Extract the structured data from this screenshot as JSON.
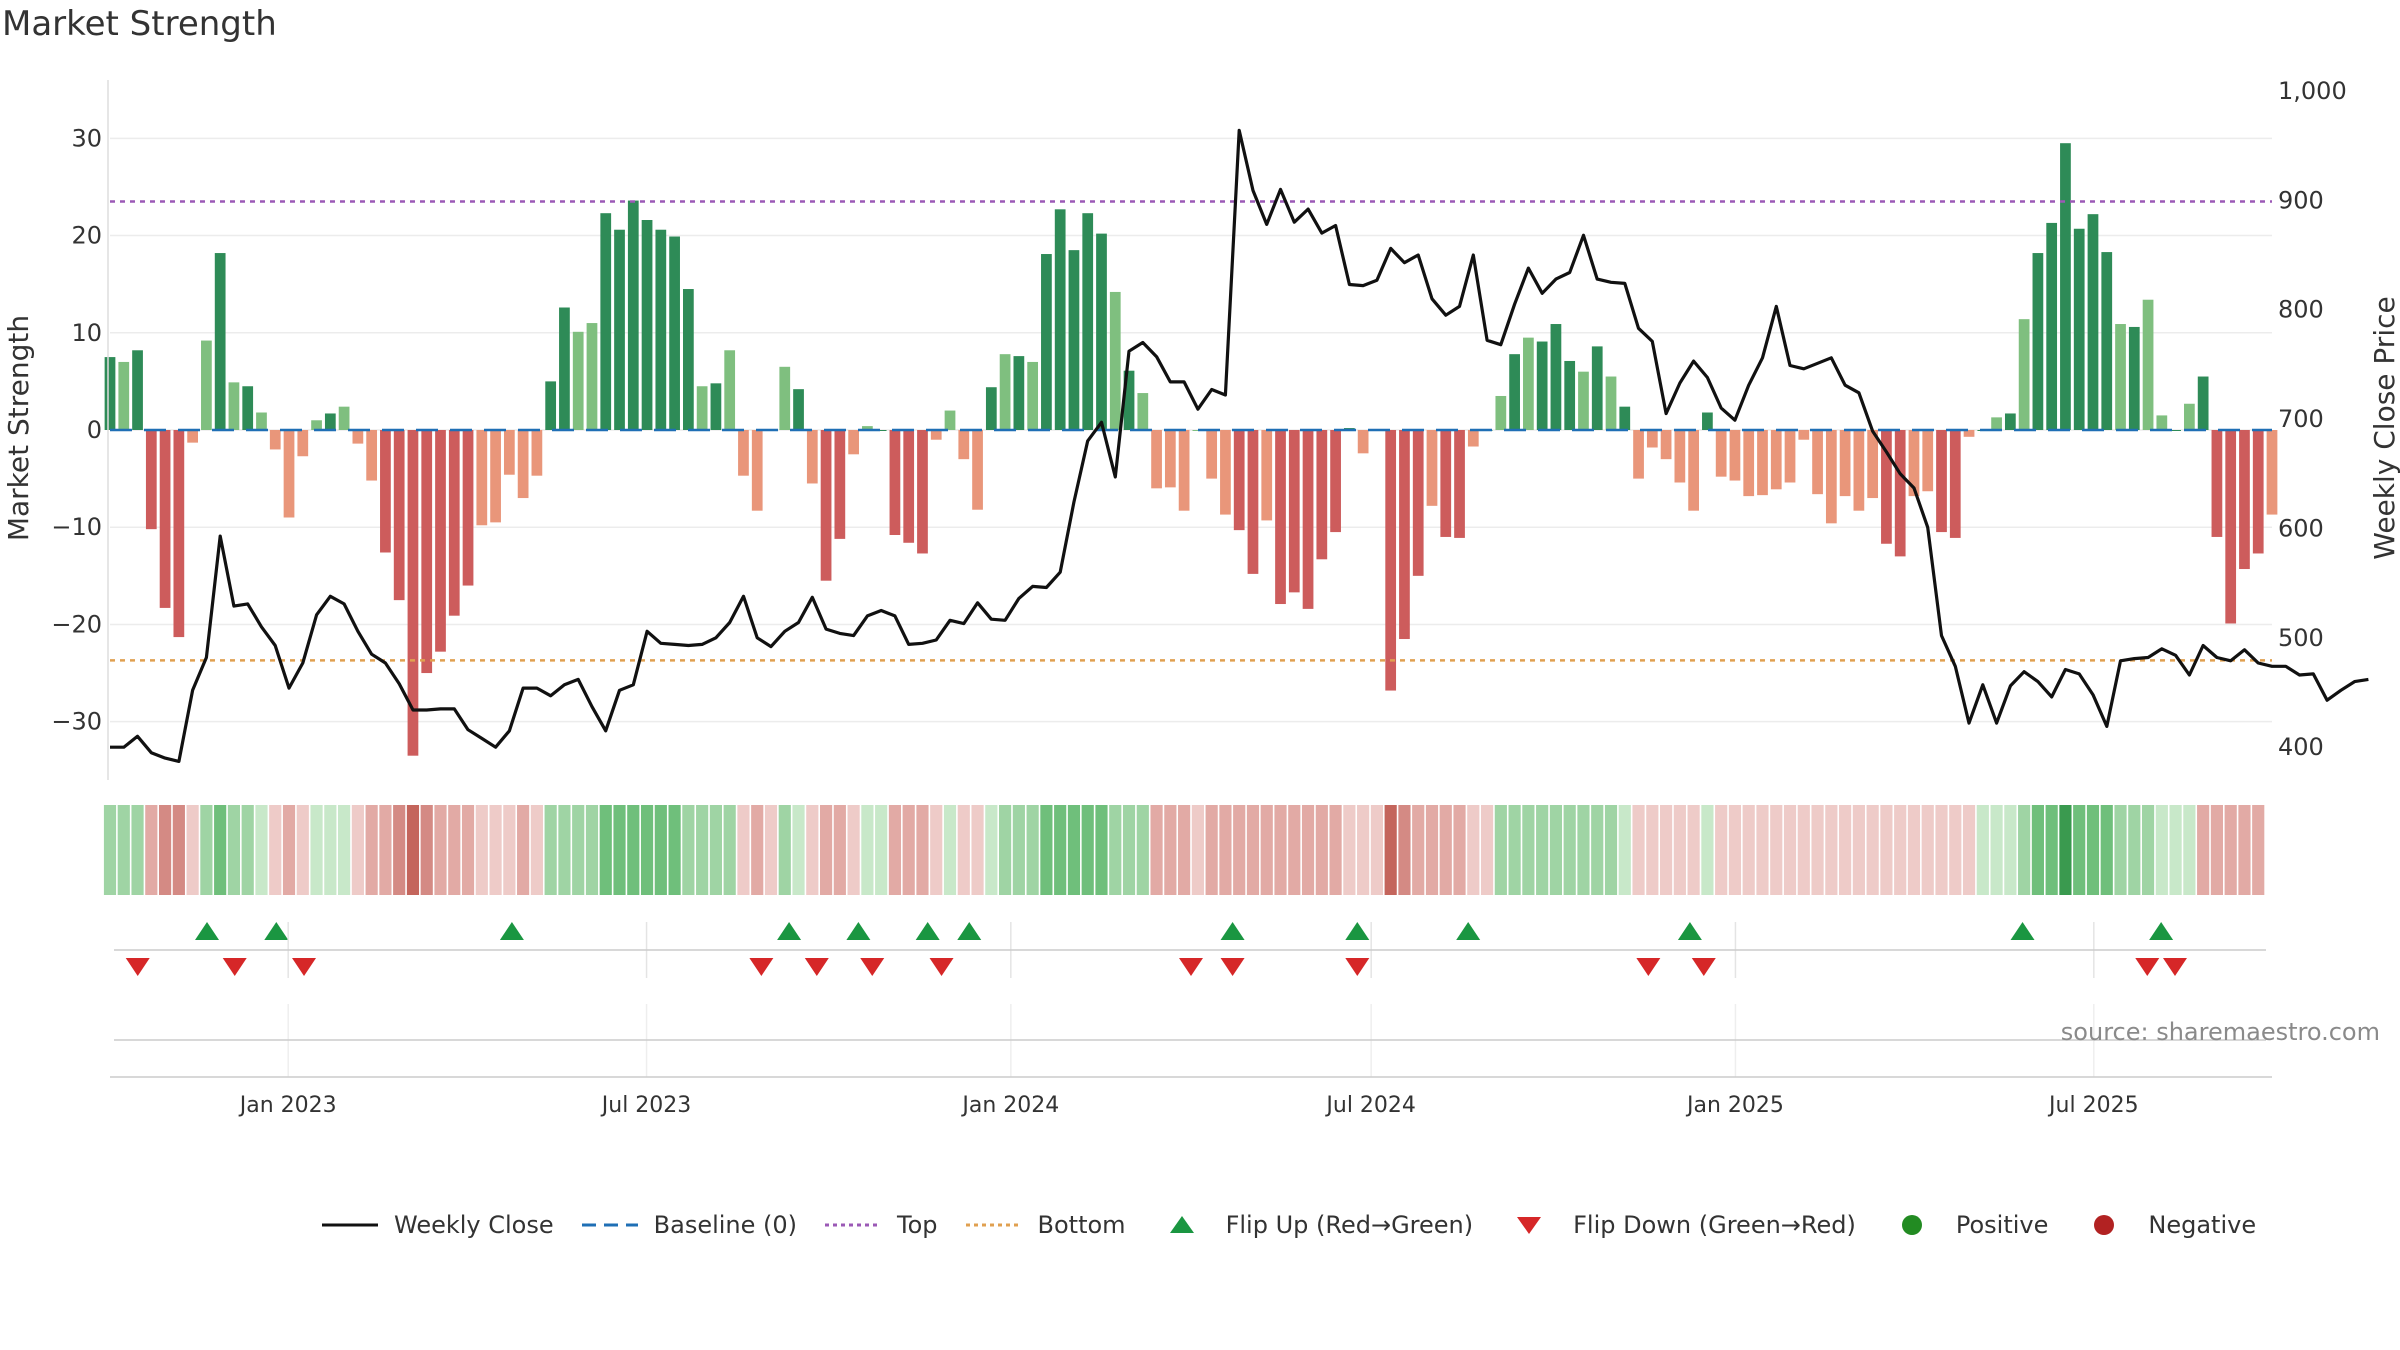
{
  "title": "Market Strength",
  "source": "source: sharemaestro.com",
  "colors": {
    "pos_strong": "#2e8b57",
    "pos_light": "#7fbf7f",
    "neg_strong": "#cd5c5c",
    "neg_light": "#e9967a",
    "line": "#111111",
    "baseline": "#1f6fb5",
    "top_line": "#9b59b6",
    "bottom_line": "#e0a050",
    "flip_up": "#1a9641",
    "flip_down": "#d62728",
    "positive": "#228b22",
    "negative": "#b22222"
  },
  "legend": [
    {
      "label": "Weekly Close",
      "icon": "line-icon"
    },
    {
      "label": "Baseline (0)",
      "icon": "dashed-line-icon"
    },
    {
      "label": "Top",
      "icon": "dotted-line-icon"
    },
    {
      "label": "Bottom",
      "icon": "dotted-line-icon"
    },
    {
      "label": "Flip Up (Red→Green)",
      "icon": "triangle-up-icon"
    },
    {
      "label": "Flip Down (Green→Red)",
      "icon": "triangle-down-icon"
    },
    {
      "label": "Positive",
      "icon": "circle-icon"
    },
    {
      "label": "Negative",
      "icon": "circle-icon"
    }
  ],
  "chart_data": {
    "type": "bar",
    "ylabel": "Market Strength",
    "y2label": "Weekly Close Price",
    "ylim": [
      -36,
      36
    ],
    "y2lim": [
      370,
      1010
    ],
    "yticks": [
      30,
      20,
      10,
      0,
      -10,
      -20,
      -30
    ],
    "ytick_labels": [
      "30",
      "20",
      "10",
      "0",
      "−10",
      "−20",
      "−30"
    ],
    "y2ticks": [
      1000,
      900,
      800,
      700,
      600,
      500,
      400
    ],
    "y2tick_labels": [
      "1,000",
      "900",
      "800",
      "700",
      "600",
      "500",
      "400"
    ],
    "x_start": "2022-10-03",
    "x_end": "2025-09-29",
    "date_ticks": [
      "2023-01-01",
      "2023-07-01",
      "2024-01-01",
      "2024-07-01",
      "2025-01-01",
      "2025-07-01"
    ],
    "date_tick_labels": [
      "Jan 2023",
      "Jul 2023",
      "Jan 2024",
      "Jul 2024",
      "Jan 2025",
      "Jul 2025"
    ],
    "top_level": 23.5,
    "bottom_level": -23.7,
    "baseline": 0,
    "grid": true,
    "legend_position": "bottom",
    "series": [
      {
        "name": "Market Strength",
        "values": [
          7.5,
          7,
          8.2,
          -10.2,
          -18.3,
          -21.3,
          -1.3,
          9.2,
          18.2,
          4.9,
          4.5,
          1.8,
          -2,
          -9,
          -2.7,
          1,
          1.7,
          2.4,
          -1.4,
          -5.2,
          -12.6,
          -17.5,
          -33.5,
          -25,
          -22.8,
          -19.1,
          -16,
          -9.8,
          -9.5,
          -4.6,
          -7,
          -4.7,
          5,
          12.6,
          10.1,
          11,
          22.3,
          20.6,
          23.6,
          21.6,
          20.6,
          19.9,
          14.5,
          4.5,
          4.8,
          8.2,
          -4.7,
          -8.3,
          0,
          6.5,
          4.2,
          -5.5,
          -15.5,
          -11.2,
          -2.5,
          0.4,
          0,
          -10.8,
          -11.6,
          -12.7,
          -1,
          2,
          -3,
          -8.2,
          4.4,
          7.8,
          7.6,
          7,
          18.1,
          22.7,
          18.5,
          22.3,
          20.2,
          14.2,
          6.1,
          3.8,
          -6,
          -5.9,
          -8.3,
          0,
          -5,
          -8.7,
          -10.3,
          -14.8,
          -9.3,
          -17.9,
          -16.7,
          -18.4,
          -13.3,
          -10.5,
          0.2,
          -2.4,
          0,
          -26.8,
          -21.5,
          -15,
          -7.8,
          -11,
          -11.1,
          -1.7,
          0,
          3.5,
          7.8,
          9.5,
          9.1,
          10.9,
          7.1,
          6,
          8.6,
          5.5,
          2.4,
          -5,
          -1.8,
          -3,
          -5.4,
          -8.3,
          1.8,
          -4.8,
          -5.2,
          -6.8,
          -6.7,
          -6.1,
          -5.4,
          -1,
          -6.6,
          -9.6,
          -6.8,
          -8.3,
          -7,
          -11.7,
          -13,
          -6.8,
          -6.3,
          -10.5,
          -11.1,
          -0.7,
          0,
          1.3,
          1.7,
          11.4,
          18.2,
          21.3,
          29.5,
          20.7,
          22.2,
          18.3,
          10.9,
          10.6,
          13.4,
          1.5,
          0,
          2.7,
          5.5,
          -11,
          -19.9,
          -14.3,
          -12.7,
          -8.7
        ]
      },
      {
        "name": "Weekly Close",
        "values": [
          400,
          400,
          410,
          395,
          390,
          387,
          452,
          482,
          593,
          529,
          531,
          510,
          493,
          454,
          477,
          521,
          538,
          531,
          506,
          485,
          477,
          458,
          434,
          434,
          435,
          435,
          416,
          408,
          400,
          415,
          454,
          454,
          447,
          457,
          462,
          437,
          415,
          452,
          457,
          506,
          495,
          494,
          493,
          494,
          500,
          514,
          538,
          500,
          492,
          506,
          514,
          537,
          508,
          504,
          502,
          520,
          525,
          520,
          494,
          495,
          498,
          516,
          513,
          532,
          517,
          516,
          536,
          547,
          546,
          560,
          624,
          680,
          697,
          647,
          762,
          770,
          757,
          734,
          734,
          709,
          727,
          722,
          964,
          909,
          878,
          910,
          880,
          892,
          870,
          877,
          823,
          822,
          827,
          856,
          843,
          850,
          810,
          795,
          803,
          850,
          772,
          768,
          805,
          838,
          815,
          828,
          834,
          868,
          828,
          825,
          824,
          783,
          771,
          705,
          733,
          753,
          738,
          710,
          699,
          731,
          756,
          803,
          749,
          746,
          751,
          756,
          731,
          724,
          689,
          670,
          650,
          637,
          601,
          502,
          474,
          422,
          457,
          422,
          456,
          469,
          460,
          446,
          471,
          467,
          448,
          419,
          479,
          481,
          482,
          490,
          484,
          466,
          493,
          482,
          479,
          489,
          477,
          474,
          474,
          466,
          467,
          443,
          452,
          460,
          462
        ]
      }
    ]
  },
  "strip_values": [
    2,
    2,
    2,
    -2,
    -3,
    -3,
    -1,
    2,
    3,
    2,
    2,
    1,
    -1,
    -2,
    -1,
    1,
    1,
    1,
    -1,
    -2,
    -2,
    -3,
    -4,
    -3,
    -2,
    -2,
    -2,
    -1,
    -1,
    -1,
    -2,
    -1,
    2,
    2,
    2,
    2,
    3,
    3,
    3,
    3,
    3,
    3,
    2,
    2,
    2,
    2,
    -1,
    -2,
    -1,
    2,
    1,
    -1,
    -2,
    -2,
    -1,
    1,
    1,
    -2,
    -2,
    -2,
    -1,
    1,
    -1,
    -1,
    1,
    2,
    2,
    2,
    3,
    3,
    3,
    3,
    3,
    2,
    2,
    2,
    -2,
    -2,
    -2,
    -1,
    -2,
    -2,
    -2,
    -2,
    -2,
    -2,
    -2,
    -2,
    -2,
    -2,
    -1,
    -1,
    -1,
    -4,
    -3,
    -2,
    -2,
    -2,
    -2,
    -1,
    -1,
    2,
    2,
    2,
    2,
    2,
    2,
    2,
    2,
    2,
    1,
    -1,
    -1,
    -1,
    -1,
    -1,
    1,
    -1,
    -1,
    -1,
    -1,
    -1,
    -1,
    -1,
    -1,
    -1,
    -1,
    -1,
    -1,
    -1,
    -1,
    -1,
    -1,
    -1,
    -1,
    -1,
    1,
    1,
    1,
    2,
    3,
    3,
    4,
    3,
    3,
    3,
    2,
    2,
    2,
    1,
    1,
    1,
    -2,
    -2,
    -2,
    -2,
    -2
  ],
  "flip_up_dates": [
    "2022-11-21",
    "2022-12-26",
    "2023-04-24",
    "2023-09-11",
    "2023-10-16",
    "2023-11-20",
    "2023-12-11",
    "2024-04-22",
    "2024-06-24",
    "2024-08-19",
    "2024-12-09",
    "2025-05-26",
    "2025-08-04"
  ],
  "flip_down_dates": [
    "2022-10-17",
    "2022-12-05",
    "2023-01-09",
    "2023-08-28",
    "2023-09-25",
    "2023-10-23",
    "2023-11-27",
    "2024-04-01",
    "2024-04-22",
    "2024-06-24",
    "2024-11-18",
    "2024-12-16",
    "2025-07-28",
    "2025-08-11"
  ]
}
